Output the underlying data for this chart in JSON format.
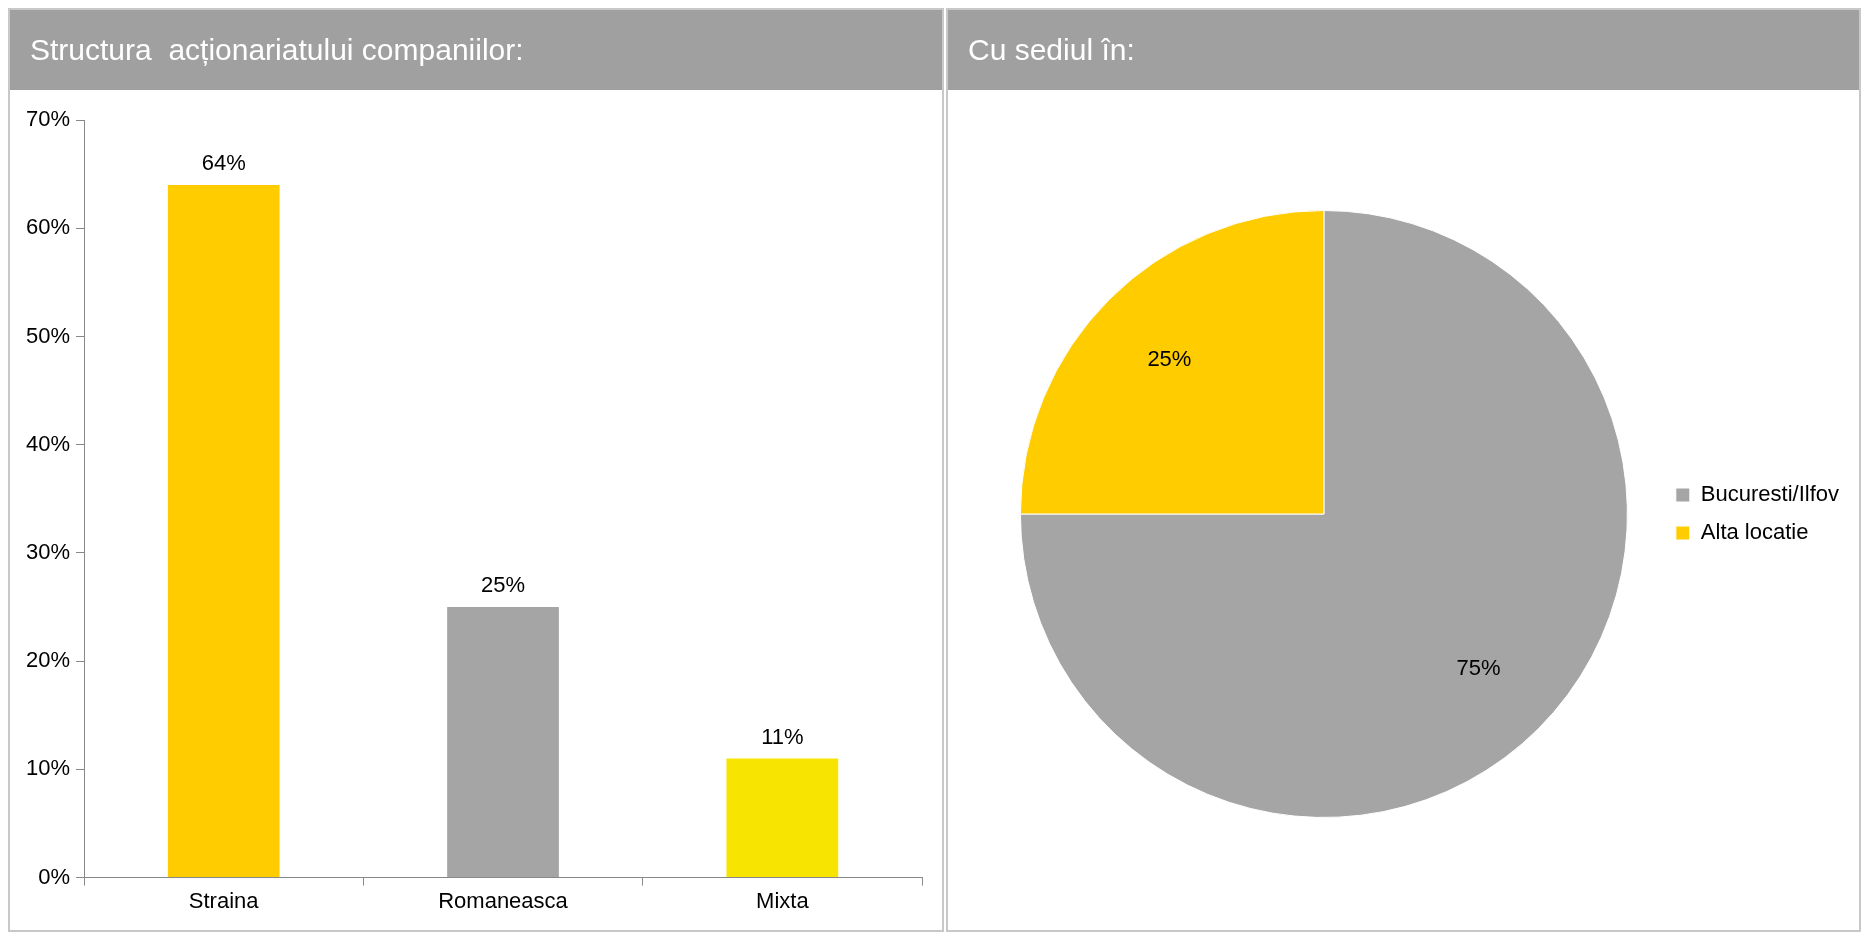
{
  "chart_data": [
    {
      "type": "bar",
      "title": "Structura  acționariatului companiilor:",
      "categories": [
        "Straina",
        "Romaneasca",
        "Mixta"
      ],
      "values": [
        64,
        25,
        11
      ],
      "colors": [
        "#ffcc00",
        "#a5a5a5",
        "#f7e400"
      ],
      "value_labels": [
        "64%",
        "25%",
        "11%"
      ],
      "ylim": [
        0,
        70
      ],
      "yticks": [
        {
          "value": 0,
          "label": "0%"
        },
        {
          "value": 10,
          "label": "10%"
        },
        {
          "value": 20,
          "label": "20%"
        },
        {
          "value": 30,
          "label": "30%"
        },
        {
          "value": 40,
          "label": "40%"
        },
        {
          "value": 50,
          "label": "50%"
        },
        {
          "value": 60,
          "label": "60%"
        },
        {
          "value": 70,
          "label": "70%"
        }
      ],
      "grid": false,
      "legend": false
    },
    {
      "type": "pie",
      "title": "Cu sediul în:",
      "categories": [
        "Bucuresti/Ilfov",
        "Alta locatie"
      ],
      "values": [
        75,
        25
      ],
      "colors": [
        "#a5a5a5",
        "#ffcc00"
      ],
      "value_labels": [
        "75%",
        "25%"
      ],
      "legend": "right"
    }
  ]
}
